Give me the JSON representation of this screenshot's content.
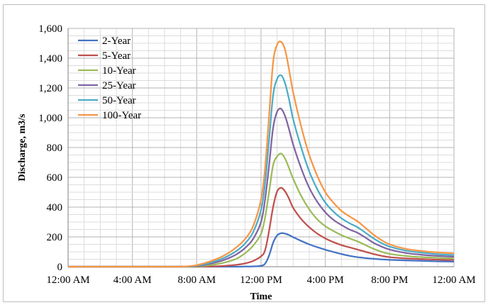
{
  "chart_data": {
    "type": "line",
    "title": "",
    "xlabel": "Time",
    "ylabel": "Discharge, m3/s",
    "xlim": [
      0,
      24
    ],
    "ylim": [
      0,
      1600
    ],
    "x_tick_values": [
      0,
      4,
      8,
      12,
      16,
      20,
      24
    ],
    "x_tick_labels": [
      "12:00 AM",
      "4:00 AM",
      "8:00 AM",
      "12:00 PM",
      "4:00 PM",
      "8:00 PM",
      "12:00 AM"
    ],
    "y_tick_values": [
      0,
      200,
      400,
      600,
      800,
      1000,
      1200,
      1400,
      1600
    ],
    "y_tick_labels": [
      "0",
      "200",
      "400",
      "600",
      "800",
      "1,000",
      "1,200",
      "1,400",
      "1,600"
    ],
    "grid": true,
    "legend_position": "top-left",
    "x": [
      0,
      2,
      4,
      6,
      7,
      7.5,
      8,
      8.5,
      9,
      9.5,
      10,
      10.5,
      11,
      11.5,
      12,
      12.25,
      12.5,
      12.75,
      13,
      13.25,
      13.5,
      13.75,
      14,
      14.5,
      15,
      15.5,
      16,
      16.5,
      17,
      17.5,
      18,
      18.5,
      19,
      19.5,
      20,
      21,
      22,
      23,
      24
    ],
    "series": [
      {
        "name": "2-Year",
        "color": "#4472c4",
        "values": [
          0,
          0,
          0,
          0,
          0,
          0,
          0,
          0,
          0,
          0,
          0,
          0,
          1,
          2,
          6,
          20,
          75,
          160,
          210,
          225,
          222,
          212,
          198,
          173,
          150,
          131,
          114,
          99,
          85,
          73,
          64,
          58,
          53,
          49,
          46,
          42,
          39,
          36,
          34
        ]
      },
      {
        "name": "5-Year",
        "color": "#c0504d",
        "values": [
          0,
          0,
          0,
          0,
          0,
          0,
          0,
          1,
          2,
          4,
          8,
          13,
          22,
          38,
          70,
          110,
          240,
          400,
          505,
          530,
          505,
          455,
          395,
          320,
          265,
          222,
          190,
          165,
          145,
          130,
          115,
          100,
          85,
          73,
          64,
          56,
          51,
          47,
          45
        ]
      },
      {
        "name": "10-Year",
        "color": "#9bbb59",
        "values": [
          0,
          0,
          0,
          0,
          0,
          0,
          2,
          6,
          13,
          22,
          36,
          55,
          90,
          140,
          220,
          330,
          500,
          680,
          740,
          760,
          725,
          660,
          590,
          475,
          385,
          318,
          272,
          240,
          212,
          190,
          170,
          145,
          120,
          100,
          86,
          72,
          64,
          59,
          55
        ]
      },
      {
        "name": "25-Year",
        "color": "#8064a2",
        "values": [
          0,
          0,
          0,
          0,
          0,
          1,
          4,
          12,
          24,
          38,
          58,
          85,
          125,
          185,
          300,
          450,
          680,
          930,
          1040,
          1060,
          1010,
          920,
          820,
          660,
          530,
          435,
          365,
          315,
          280,
          250,
          228,
          195,
          160,
          135,
          115,
          92,
          80,
          72,
          67
        ]
      },
      {
        "name": "50-Year",
        "color": "#4bacc6",
        "values": [
          0,
          0,
          0,
          0,
          0,
          2,
          7,
          17,
          32,
          50,
          75,
          108,
          155,
          230,
          380,
          560,
          850,
          1150,
          1260,
          1285,
          1230,
          1120,
          990,
          800,
          640,
          520,
          430,
          370,
          325,
          292,
          265,
          228,
          190,
          158,
          135,
          108,
          94,
          84,
          78
        ]
      },
      {
        "name": "100-Year",
        "color": "#f79646",
        "values": [
          0,
          0,
          0,
          0,
          0,
          3,
          10,
          24,
          42,
          64,
          94,
          133,
          185,
          270,
          450,
          660,
          1010,
          1370,
          1490,
          1510,
          1455,
          1320,
          1170,
          940,
          750,
          610,
          500,
          430,
          375,
          338,
          305,
          260,
          215,
          178,
          150,
          120,
          105,
          96,
          90
        ]
      }
    ]
  }
}
